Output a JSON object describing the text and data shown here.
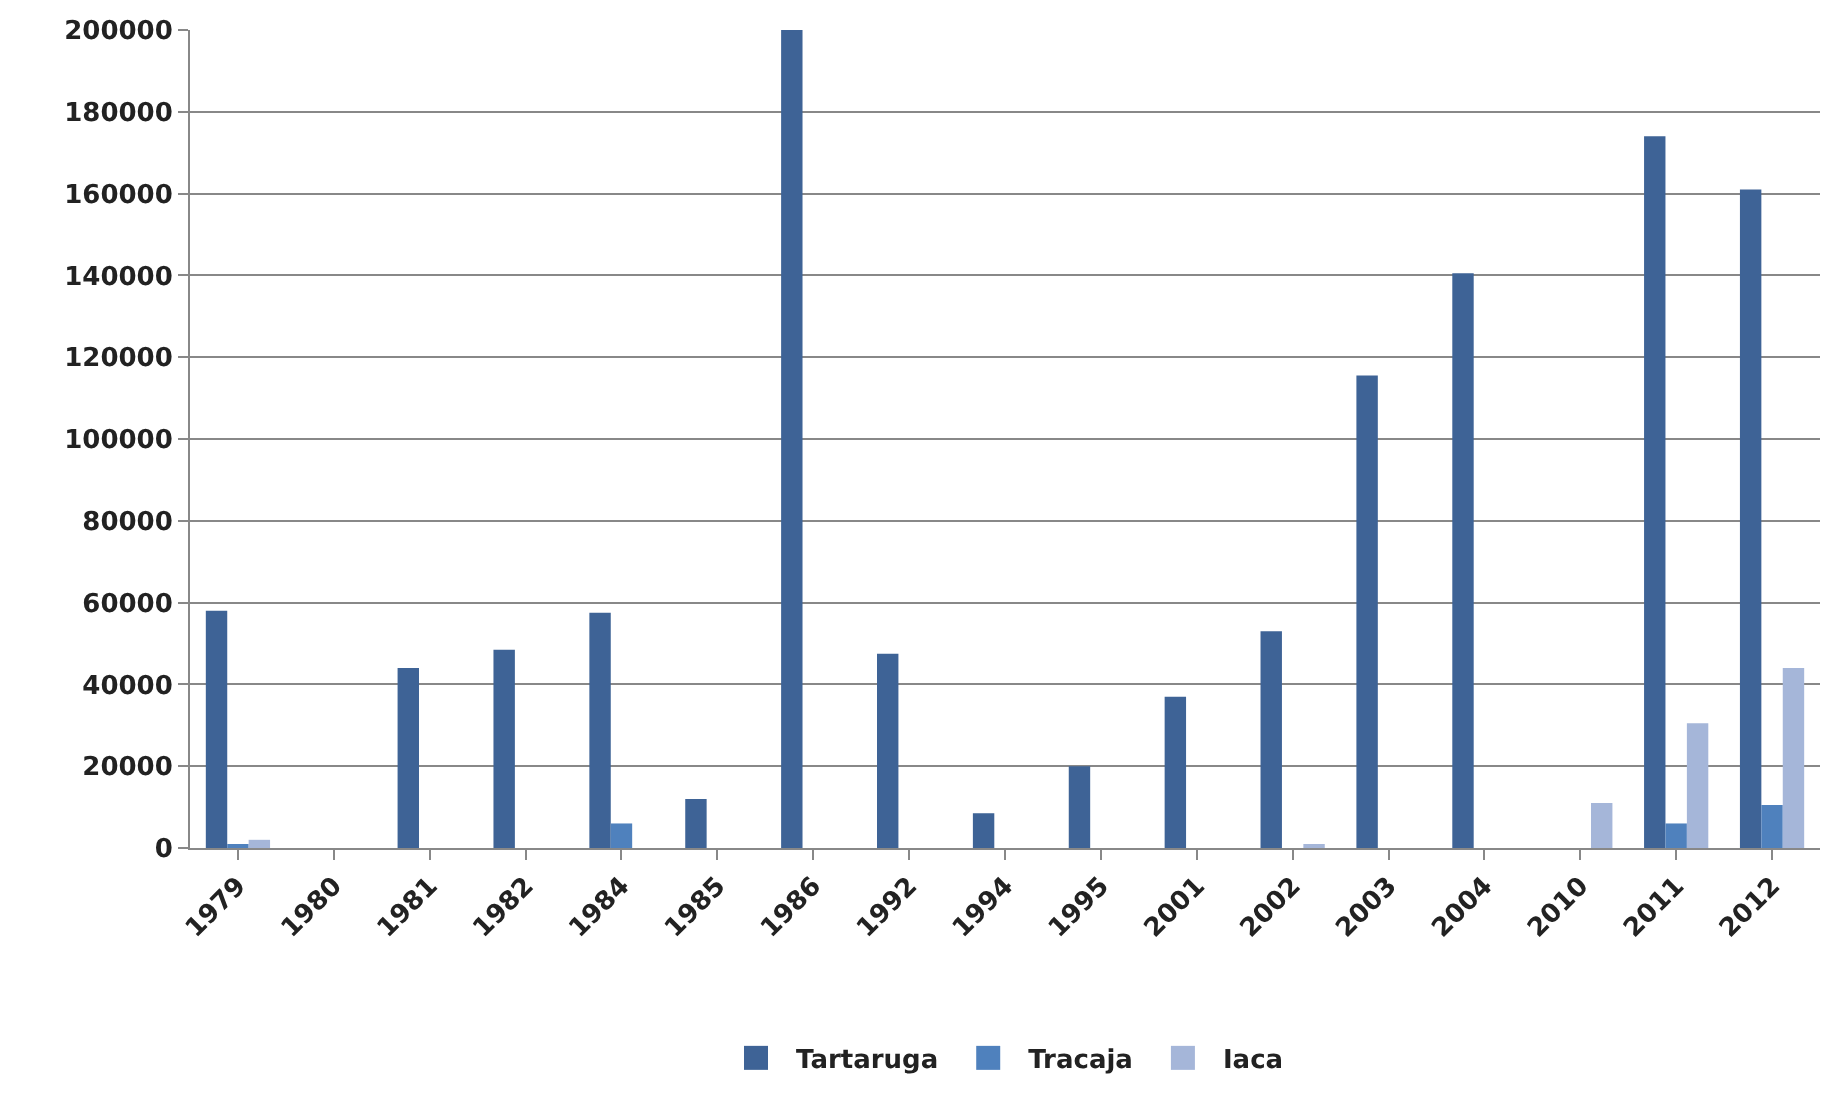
{
  "chart_data": {
    "type": "bar",
    "categories": [
      "1979",
      "1980",
      "1981",
      "1982",
      "1984",
      "1985",
      "1986",
      "1992",
      "1994",
      "1995",
      "2001",
      "2002",
      "2003",
      "2004",
      "2010",
      "2011",
      "2012"
    ],
    "series": [
      {
        "name": "Tartaruga",
        "color": "#3e6396",
        "values": [
          58000,
          0,
          44000,
          48500,
          57500,
          12000,
          200000,
          47500,
          8500,
          20000,
          37000,
          53000,
          115500,
          140500,
          0,
          174000,
          161000
        ]
      },
      {
        "name": "Tracaja",
        "color": "#4f81bd",
        "values": [
          500,
          0,
          0,
          0,
          6000,
          0,
          0,
          0,
          0,
          0,
          0,
          0,
          0,
          0,
          0,
          6000,
          10500
        ]
      },
      {
        "name": "Iaca",
        "color": "#a5b6d9",
        "values": [
          2000,
          0,
          0,
          0,
          0,
          0,
          0,
          0,
          0,
          0,
          0,
          500,
          0,
          0,
          11000,
          30500,
          44000
        ]
      }
    ],
    "ylim": [
      0,
      200000
    ],
    "yticks": [
      0,
      20000,
      40000,
      60000,
      80000,
      100000,
      120000,
      140000,
      160000,
      180000,
      200000
    ],
    "grid": "y",
    "legend": "bottom"
  }
}
